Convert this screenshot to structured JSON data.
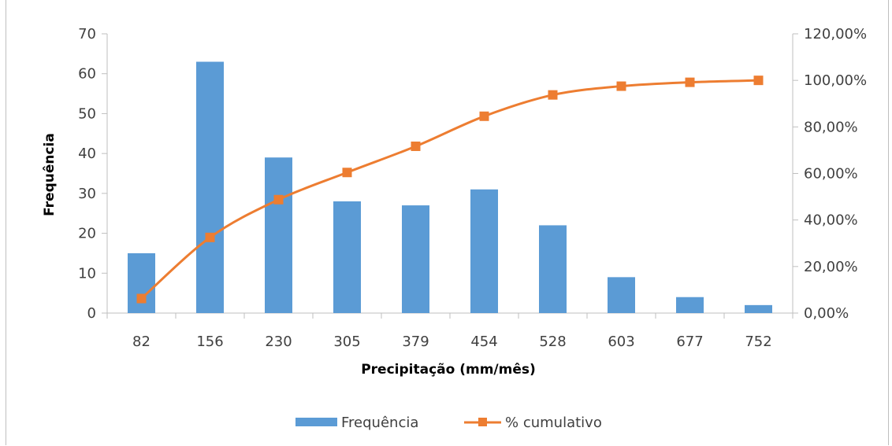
{
  "chart_data": {
    "type": "bar",
    "categories": [
      "82",
      "156",
      "230",
      "305",
      "379",
      "454",
      "528",
      "603",
      "677",
      "752"
    ],
    "series": [
      {
        "name": "Frequência",
        "type": "bar",
        "axis": "left",
        "color": "#5b9bd5",
        "values": [
          15,
          63,
          39,
          28,
          27,
          31,
          22,
          9,
          4,
          2
        ]
      },
      {
        "name": "% cumulativo",
        "type": "line",
        "axis": "right",
        "color": "#ed7d31",
        "marker": "square",
        "values": [
          6.25,
          32.5,
          48.75,
          60.42,
          71.67,
          84.58,
          93.75,
          97.5,
          99.17,
          100.0
        ]
      }
    ],
    "xlabel": "Precipitação (mm/mês)",
    "ylabel": "Frequência",
    "ylim": [
      0,
      70
    ],
    "y_ticks": [
      "0",
      "10",
      "20",
      "30",
      "40",
      "50",
      "60",
      "70"
    ],
    "y2lim": [
      0,
      120
    ],
    "y2_ticks": [
      "0,00%",
      "20,00%",
      "40,00%",
      "60,00%",
      "80,00%",
      "100,00%",
      "120,00%"
    ],
    "grid": false,
    "legend_position": "bottom"
  }
}
